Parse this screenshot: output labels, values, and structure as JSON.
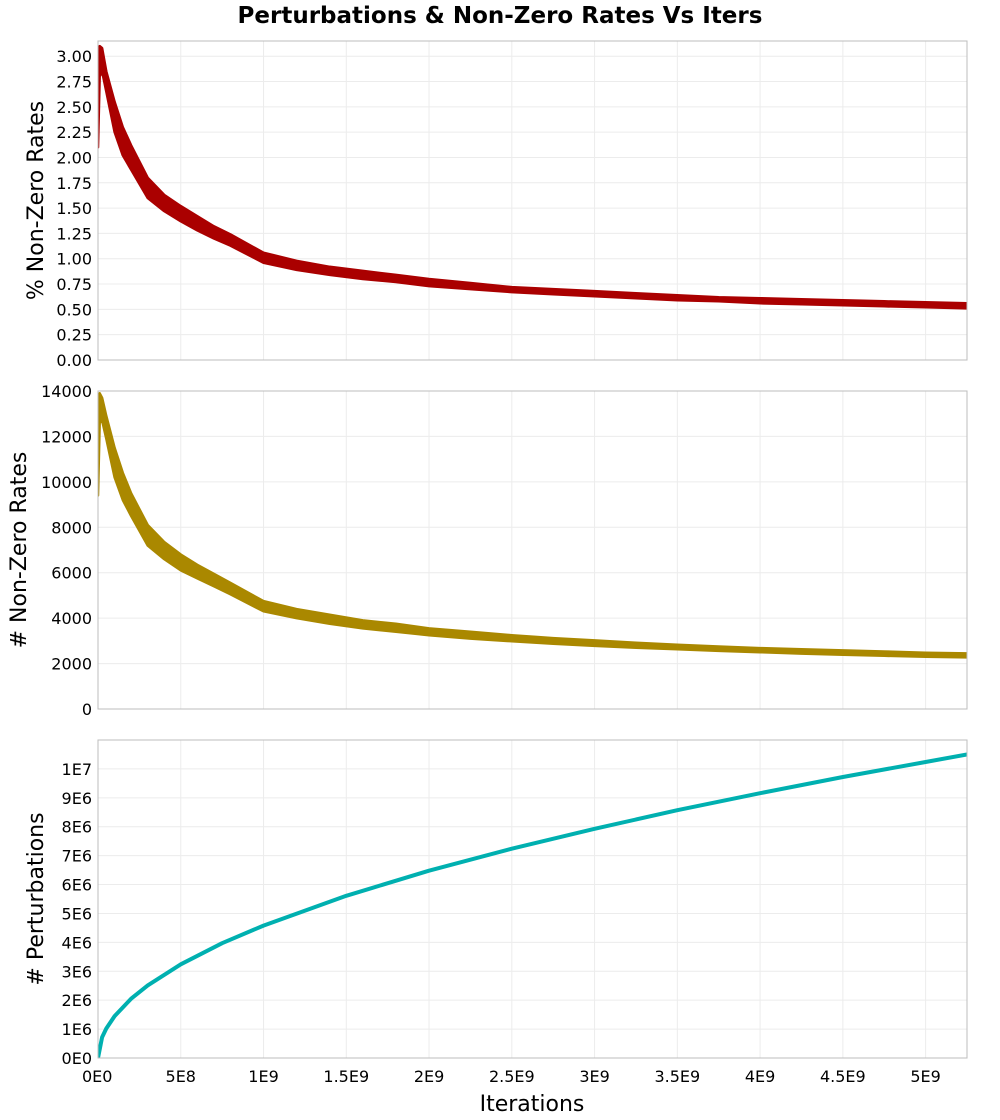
{
  "chart_data": {
    "title": "Perturbations & Non-Zero Rates Vs Iters",
    "xlabel": "Iterations",
    "xlim": [
      0,
      5250000000
    ],
    "x_ticks": [
      {
        "value": 0,
        "label": "0E0"
      },
      {
        "value": 500000000,
        "label": "5E8"
      },
      {
        "value": 1000000000,
        "label": "1E9"
      },
      {
        "value": 1500000000,
        "label": "1.5E9"
      },
      {
        "value": 2000000000,
        "label": "2E9"
      },
      {
        "value": 2500000000,
        "label": "2.5E9"
      },
      {
        "value": 3000000000,
        "label": "3E9"
      },
      {
        "value": 3500000000,
        "label": "3.5E9"
      },
      {
        "value": 4000000000,
        "label": "4E9"
      },
      {
        "value": 4500000000,
        "label": "4.5E9"
      },
      {
        "value": 5000000000,
        "label": "5E9"
      }
    ],
    "grid": true,
    "panels": [
      {
        "type": "area",
        "ylabel": "% Non-Zero Rates",
        "ylim": [
          0,
          3.15
        ],
        "color": "#aa0000",
        "y_ticks": [
          {
            "value": 0,
            "label": "0.00"
          },
          {
            "value": 0.25,
            "label": "0.25"
          },
          {
            "value": 0.5,
            "label": "0.50"
          },
          {
            "value": 0.75,
            "label": "0.75"
          },
          {
            "value": 1.0,
            "label": "1.00"
          },
          {
            "value": 1.25,
            "label": "1.25"
          },
          {
            "value": 1.5,
            "label": "1.50"
          },
          {
            "value": 1.75,
            "label": "1.75"
          },
          {
            "value": 2.0,
            "label": "2.00"
          },
          {
            "value": 2.25,
            "label": "2.25"
          },
          {
            "value": 2.5,
            "label": "2.50"
          },
          {
            "value": 2.75,
            "label": "2.75"
          },
          {
            "value": 3.0,
            "label": "3.00"
          }
        ],
        "x": [
          0,
          10000000,
          25000000,
          50000000,
          100000000,
          150000000,
          200000000,
          300000000,
          400000000,
          500000000,
          600000000,
          700000000,
          800000000,
          1000000000,
          1200000000,
          1400000000,
          1600000000,
          1800000000,
          2000000000,
          2250000000,
          2500000000,
          2750000000,
          3000000000,
          3250000000,
          3500000000,
          3750000000,
          4000000000,
          4250000000,
          4500000000,
          4750000000,
          5000000000,
          5250000000
        ],
        "upper": [
          2.1,
          3.1,
          3.08,
          2.85,
          2.55,
          2.3,
          2.12,
          1.8,
          1.63,
          1.52,
          1.42,
          1.32,
          1.24,
          1.06,
          0.98,
          0.92,
          0.88,
          0.84,
          0.8,
          0.76,
          0.72,
          0.7,
          0.68,
          0.66,
          0.64,
          0.62,
          0.61,
          0.6,
          0.59,
          0.58,
          0.57,
          0.56
        ],
        "lower": [
          2.1,
          2.8,
          2.85,
          2.65,
          2.25,
          2.02,
          1.88,
          1.6,
          1.47,
          1.37,
          1.28,
          1.2,
          1.13,
          0.96,
          0.89,
          0.84,
          0.8,
          0.77,
          0.73,
          0.7,
          0.67,
          0.65,
          0.63,
          0.61,
          0.59,
          0.58,
          0.56,
          0.55,
          0.54,
          0.53,
          0.52,
          0.51
        ]
      },
      {
        "type": "area",
        "ylabel": "# Non-Zero Rates",
        "ylim": [
          0,
          14000
        ],
        "color": "#aa8800",
        "y_ticks": [
          {
            "value": 0,
            "label": "0"
          },
          {
            "value": 2000,
            "label": "2000"
          },
          {
            "value": 4000,
            "label": "4000"
          },
          {
            "value": 6000,
            "label": "6000"
          },
          {
            "value": 8000,
            "label": "8000"
          },
          {
            "value": 10000,
            "label": "10000"
          },
          {
            "value": 12000,
            "label": "12000"
          },
          {
            "value": 14000,
            "label": "14000"
          }
        ],
        "x": [
          0,
          10000000,
          25000000,
          50000000,
          100000000,
          150000000,
          200000000,
          300000000,
          400000000,
          500000000,
          600000000,
          700000000,
          800000000,
          1000000000,
          1200000000,
          1400000000,
          1600000000,
          1800000000,
          2000000000,
          2250000000,
          2500000000,
          2750000000,
          3000000000,
          3250000000,
          3500000000,
          3750000000,
          4000000000,
          4250000000,
          4500000000,
          4750000000,
          5000000000,
          5250000000
        ],
        "upper": [
          9400,
          13900,
          13700,
          12900,
          11500,
          10400,
          9500,
          8100,
          7350,
          6800,
          6350,
          5950,
          5550,
          4750,
          4400,
          4150,
          3900,
          3750,
          3550,
          3400,
          3250,
          3120,
          3020,
          2920,
          2830,
          2750,
          2680,
          2630,
          2580,
          2530,
          2480,
          2450
        ],
        "lower": [
          9400,
          12600,
          12700,
          11900,
          10200,
          9200,
          8500,
          7200,
          6600,
          6100,
          5750,
          5400,
          5050,
          4300,
          4000,
          3750,
          3550,
          3400,
          3250,
          3100,
          2980,
          2870,
          2780,
          2700,
          2630,
          2560,
          2500,
          2440,
          2390,
          2340,
          2300,
          2270
        ]
      },
      {
        "type": "line",
        "ylabel": "# Perturbations",
        "ylim": [
          0,
          11000000
        ],
        "color": "#00b0b0",
        "y_ticks": [
          {
            "value": 0,
            "label": "0E0"
          },
          {
            "value": 1000000,
            "label": "1E6"
          },
          {
            "value": 2000000,
            "label": "2E6"
          },
          {
            "value": 3000000,
            "label": "3E6"
          },
          {
            "value": 4000000,
            "label": "4E6"
          },
          {
            "value": 5000000,
            "label": "5E6"
          },
          {
            "value": 6000000,
            "label": "6E6"
          },
          {
            "value": 7000000,
            "label": "7E6"
          },
          {
            "value": 8000000,
            "label": "8E6"
          },
          {
            "value": 9000000,
            "label": "9E6"
          },
          {
            "value": 10000000,
            "label": "1E7"
          }
        ],
        "x": [
          0,
          25000000,
          50000000,
          100000000,
          200000000,
          300000000,
          500000000,
          750000000,
          1000000000,
          1500000000,
          2000000000,
          2500000000,
          3000000000,
          3500000000,
          4000000000,
          4500000000,
          5000000000,
          5250000000
        ],
        "y": [
          0,
          720000,
          1020000,
          1450000,
          2050000,
          2510000,
          3240000,
          3970000,
          4580000,
          5610000,
          6480000,
          7240000,
          7930000,
          8570000,
          9160000,
          9720000,
          10240000,
          10500000
        ]
      }
    ]
  }
}
